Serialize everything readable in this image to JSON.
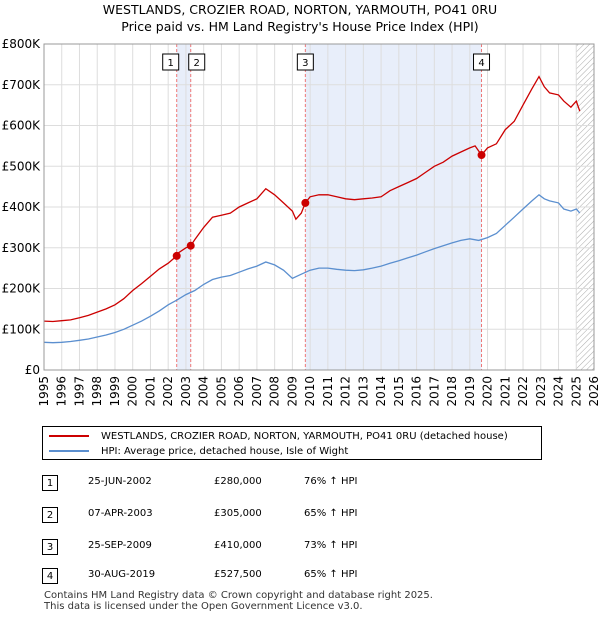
{
  "title_line1": "WESTLANDS, CROZIER ROAD, NORTON, YARMOUTH, PO41 0RU",
  "title_line2": "Price paid vs. HM Land Registry's House Price Index (HPI)",
  "colors": {
    "price": "#cc0000",
    "hpi": "#5b8fcf",
    "shade": "#e8eefa",
    "grid": "#dddddd",
    "marker_line": "#ee7777"
  },
  "chart_data": {
    "type": "line",
    "title": "Price paid vs. HM Land Registry's House Price Index (HPI)",
    "xlabel": "",
    "ylabel": "",
    "xlim": [
      1995,
      2026
    ],
    "ylim": [
      0,
      800000
    ],
    "x_ticks": [
      "1995",
      "1996",
      "1997",
      "1998",
      "1999",
      "2000",
      "2001",
      "2002",
      "2003",
      "2004",
      "2005",
      "2006",
      "2007",
      "2008",
      "2009",
      "2010",
      "2011",
      "2012",
      "2013",
      "2014",
      "2015",
      "2016",
      "2017",
      "2018",
      "2019",
      "2020",
      "2021",
      "2022",
      "2023",
      "2024",
      "2025",
      "2026"
    ],
    "y_ticks": [
      {
        "value": 0,
        "label": "£0"
      },
      {
        "value": 100000,
        "label": "£100K"
      },
      {
        "value": 200000,
        "label": "£200K"
      },
      {
        "value": 300000,
        "label": "£300K"
      },
      {
        "value": 400000,
        "label": "£400K"
      },
      {
        "value": 500000,
        "label": "£500K"
      },
      {
        "value": 600000,
        "label": "£600K"
      },
      {
        "value": 700000,
        "label": "£700K"
      },
      {
        "value": 800000,
        "label": "£800K"
      }
    ],
    "series": [
      {
        "name": "WESTLANDS, CROZIER ROAD, NORTON, YARMOUTH, PO41 0RU (detached house)",
        "color": "#cc0000",
        "x": [
          1995.0,
          1995.5,
          1996.0,
          1996.5,
          1997.0,
          1997.5,
          1998.0,
          1998.5,
          1999.0,
          1999.5,
          2000.0,
          2000.5,
          2001.0,
          2001.5,
          2002.0,
          2002.48,
          2002.6,
          2003.0,
          2003.27,
          2003.5,
          2004.0,
          2004.5,
          2005.0,
          2005.5,
          2006.0,
          2006.5,
          2007.0,
          2007.5,
          2008.0,
          2008.5,
          2009.0,
          2009.2,
          2009.5,
          2009.73,
          2010.0,
          2010.5,
          2011.0,
          2011.5,
          2012.0,
          2012.5,
          2013.0,
          2013.5,
          2014.0,
          2014.5,
          2015.0,
          2015.5,
          2016.0,
          2016.5,
          2017.0,
          2017.5,
          2018.0,
          2018.5,
          2019.0,
          2019.3,
          2019.66,
          2020.0,
          2020.5,
          2021.0,
          2021.5,
          2022.0,
          2022.5,
          2022.9,
          2023.2,
          2023.5,
          2024.0,
          2024.3,
          2024.7,
          2025.0,
          2025.2
        ],
        "y": [
          120000,
          119000,
          121000,
          123000,
          128000,
          134000,
          142000,
          150000,
          160000,
          175000,
          195000,
          212000,
          230000,
          248000,
          262000,
          280000,
          288000,
          300000,
          305000,
          320000,
          350000,
          375000,
          380000,
          385000,
          400000,
          410000,
          420000,
          445000,
          430000,
          410000,
          390000,
          370000,
          385000,
          410000,
          425000,
          430000,
          430000,
          425000,
          420000,
          418000,
          420000,
          422000,
          425000,
          440000,
          450000,
          460000,
          470000,
          485000,
          500000,
          510000,
          525000,
          535000,
          545000,
          550000,
          527500,
          545000,
          555000,
          590000,
          610000,
          650000,
          690000,
          720000,
          695000,
          680000,
          675000,
          660000,
          645000,
          660000,
          635000
        ]
      },
      {
        "name": "HPI: Average price, detached house, Isle of Wight",
        "color": "#5b8fcf",
        "x": [
          1995.0,
          1995.5,
          1996.0,
          1996.5,
          1997.0,
          1997.5,
          1998.0,
          1998.5,
          1999.0,
          1999.5,
          2000.0,
          2000.5,
          2001.0,
          2001.5,
          2002.0,
          2002.5,
          2003.0,
          2003.5,
          2004.0,
          2004.5,
          2005.0,
          2005.5,
          2006.0,
          2006.5,
          2007.0,
          2007.5,
          2008.0,
          2008.5,
          2009.0,
          2009.5,
          2010.0,
          2010.5,
          2011.0,
          2011.5,
          2012.0,
          2012.5,
          2013.0,
          2013.5,
          2014.0,
          2014.5,
          2015.0,
          2015.5,
          2016.0,
          2016.5,
          2017.0,
          2017.5,
          2018.0,
          2018.5,
          2019.0,
          2019.5,
          2020.0,
          2020.5,
          2021.0,
          2021.5,
          2022.0,
          2022.5,
          2022.9,
          2023.2,
          2023.5,
          2024.0,
          2024.3,
          2024.7,
          2025.0,
          2025.2
        ],
        "y": [
          68000,
          67000,
          68000,
          70000,
          73000,
          76000,
          81000,
          86000,
          92000,
          100000,
          110000,
          120000,
          132000,
          145000,
          160000,
          172000,
          185000,
          195000,
          210000,
          222000,
          228000,
          232000,
          240000,
          248000,
          255000,
          265000,
          258000,
          245000,
          225000,
          235000,
          245000,
          250000,
          250000,
          247000,
          245000,
          244000,
          246000,
          250000,
          255000,
          262000,
          268000,
          275000,
          282000,
          290000,
          298000,
          305000,
          312000,
          318000,
          322000,
          318000,
          325000,
          335000,
          355000,
          375000,
          395000,
          415000,
          430000,
          420000,
          415000,
          410000,
          395000,
          390000,
          395000,
          385000
        ]
      }
    ],
    "sales": [
      {
        "num": "1",
        "x": 2002.48,
        "y": 280000
      },
      {
        "num": "2",
        "x": 2003.27,
        "y": 305000
      },
      {
        "num": "3",
        "x": 2009.73,
        "y": 410000
      },
      {
        "num": "4",
        "x": 2019.66,
        "y": 527500
      }
    ],
    "shaded_ranges": [
      [
        2002.48,
        2003.27
      ],
      [
        2009.73,
        2019.66
      ]
    ],
    "hatched_from": 2025.0
  },
  "legend": {
    "price_label": "WESTLANDS, CROZIER ROAD, NORTON, YARMOUTH, PO41 0RU (detached house)",
    "hpi_label": "HPI: Average price, detached house, Isle of Wight"
  },
  "table": [
    {
      "num": "1",
      "date": "25-JUN-2002",
      "price": "£280,000",
      "hpi": "76% ↑ HPI"
    },
    {
      "num": "2",
      "date": "07-APR-2003",
      "price": "£305,000",
      "hpi": "65% ↑ HPI"
    },
    {
      "num": "3",
      "date": "25-SEP-2009",
      "price": "£410,000",
      "hpi": "73% ↑ HPI"
    },
    {
      "num": "4",
      "date": "30-AUG-2019",
      "price": "£527,500",
      "hpi": "65% ↑ HPI"
    }
  ],
  "footer": {
    "line1": "Contains HM Land Registry data © Crown copyright and database right 2025.",
    "line2": "This data is licensed under the Open Government Licence v3.0."
  }
}
